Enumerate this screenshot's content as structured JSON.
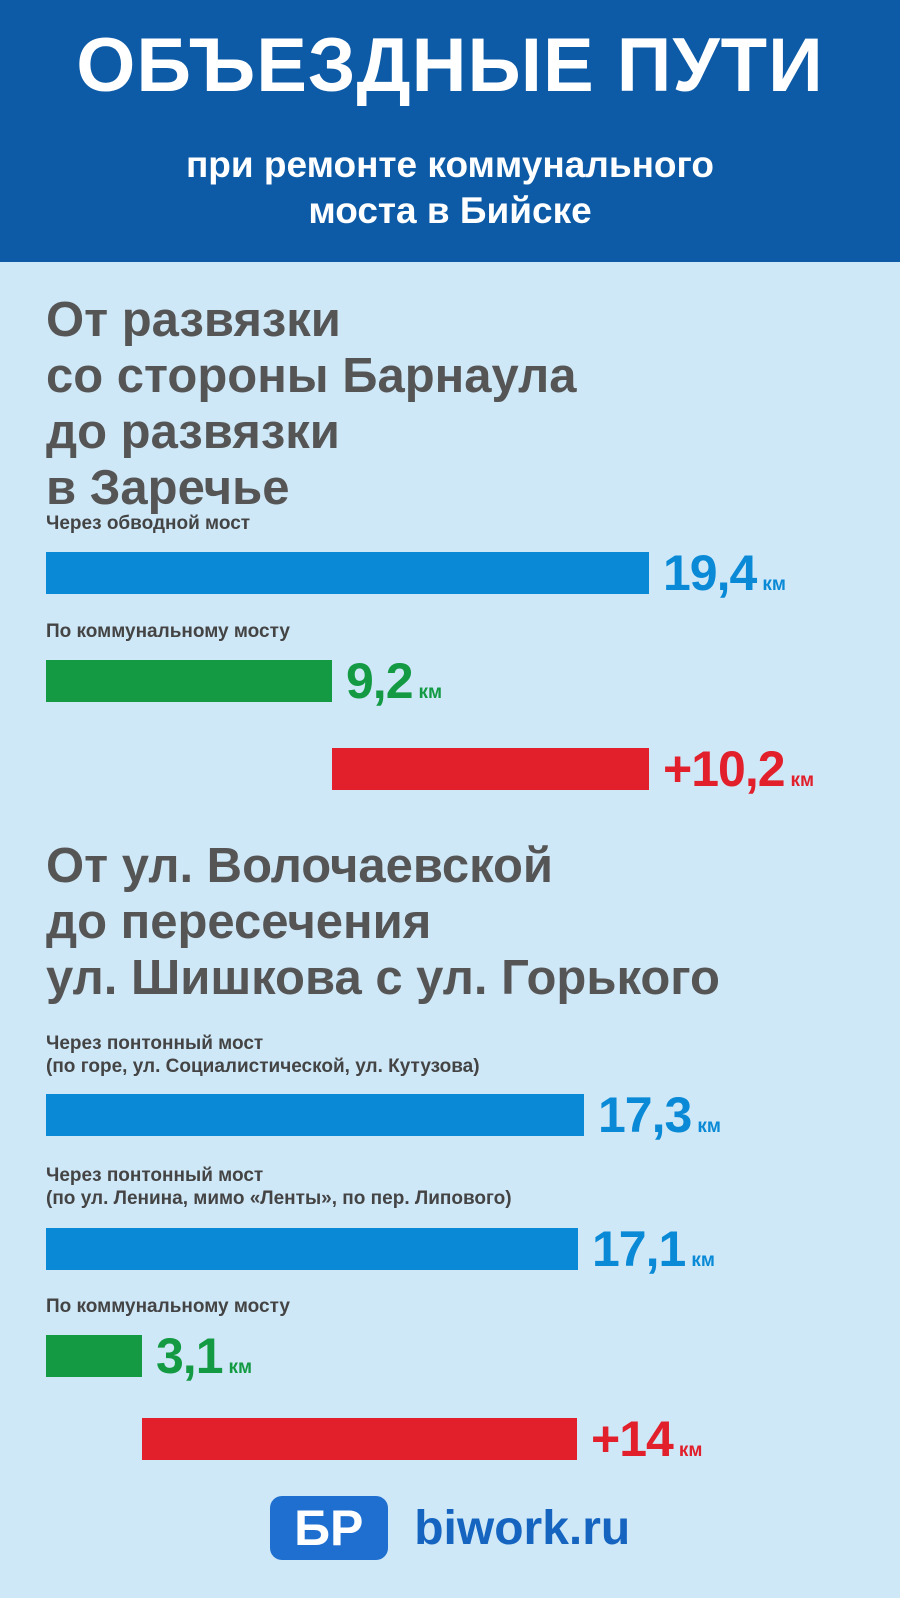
{
  "header": {
    "title": "ОБЪЕЗДНЫЕ ПУТИ",
    "subtitle_line1": "при ремонте коммунального",
    "subtitle_line2": "моста в Бийске"
  },
  "colors": {
    "header_bg": "#0d5ba7",
    "page_bg": "#cfe8f8",
    "detour": "#0a8ad6",
    "bridge": "#139a43",
    "difference": "#e1202b"
  },
  "chart_data": [
    {
      "type": "bar",
      "title": "От развязки со стороны Барнаула до развязки в Заречье",
      "title_lines": [
        "От развязки",
        "со стороны Барнаула",
        "до развязки",
        "в Заречье"
      ],
      "unit": "км",
      "series": [
        {
          "label": "Через обводной мост",
          "value": 19.4,
          "display": "19,4",
          "kind": "detour"
        },
        {
          "label": "По коммунальному мосту",
          "value": 9.2,
          "display": "9,2",
          "kind": "bridge"
        },
        {
          "label": "",
          "value": 10.2,
          "display": "+10,2",
          "kind": "difference"
        }
      ]
    },
    {
      "type": "bar",
      "title": "От ул. Волочаевской до пересечения ул. Шишкова с ул. Горького",
      "title_lines": [
        "От ул. Волочаевской",
        "до пересечения",
        "ул. Шишкова с ул. Горького"
      ],
      "unit": "км",
      "series": [
        {
          "label_lines": [
            "Через понтонный мост",
            "(по горе, ул. Социалистической, ул. Кутузова)"
          ],
          "value": 17.3,
          "display": "17,3",
          "kind": "detour"
        },
        {
          "label_lines": [
            "Через понтонный мост",
            "(по ул. Ленина, мимо «Ленты», по пер. Липового)"
          ],
          "value": 17.1,
          "display": "17,1",
          "kind": "detour"
        },
        {
          "label_lines": [
            "По коммунальному мосту"
          ],
          "value": 3.1,
          "display": "3,1",
          "kind": "bridge"
        },
        {
          "label_lines": [
            ""
          ],
          "value": 14,
          "display": "+14",
          "kind": "difference"
        }
      ]
    }
  ],
  "footer": {
    "logo_text": "БР",
    "site": "biwork.ru"
  }
}
